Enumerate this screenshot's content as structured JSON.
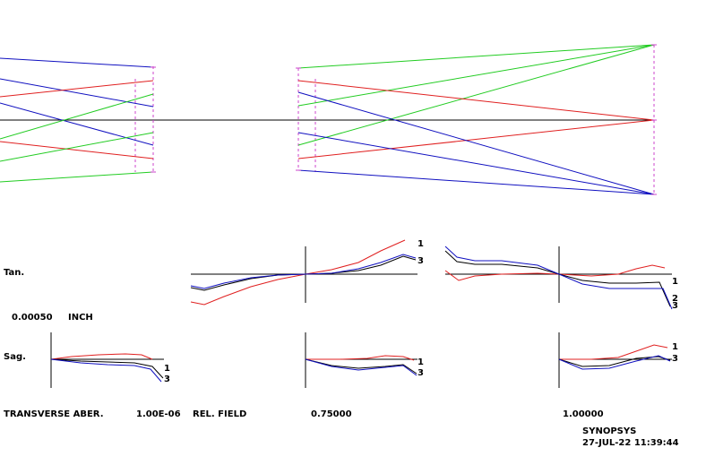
{
  "colors": {
    "red": "#e02020",
    "green": "#22cc22",
    "blue": "#1010c0",
    "black": "#000000",
    "surface": "#cc44cc"
  },
  "labels": {
    "tan": "Tan.",
    "sag": "Sag.",
    "scale_value": "0.00050",
    "scale_unit": "INCH",
    "transverse_aber": "TRANSVERSE ABER.",
    "wavelength_value": "1.00E-06",
    "rel_field": "REL. FIELD",
    "field_075": "0.75000",
    "field_100": "1.00000",
    "software": "SYNOPSYS",
    "timestamp": "27-JUL-22  11:39:44"
  },
  "curve_labels": {
    "c1": "1",
    "c3": "3",
    "c2": "2"
  }
}
